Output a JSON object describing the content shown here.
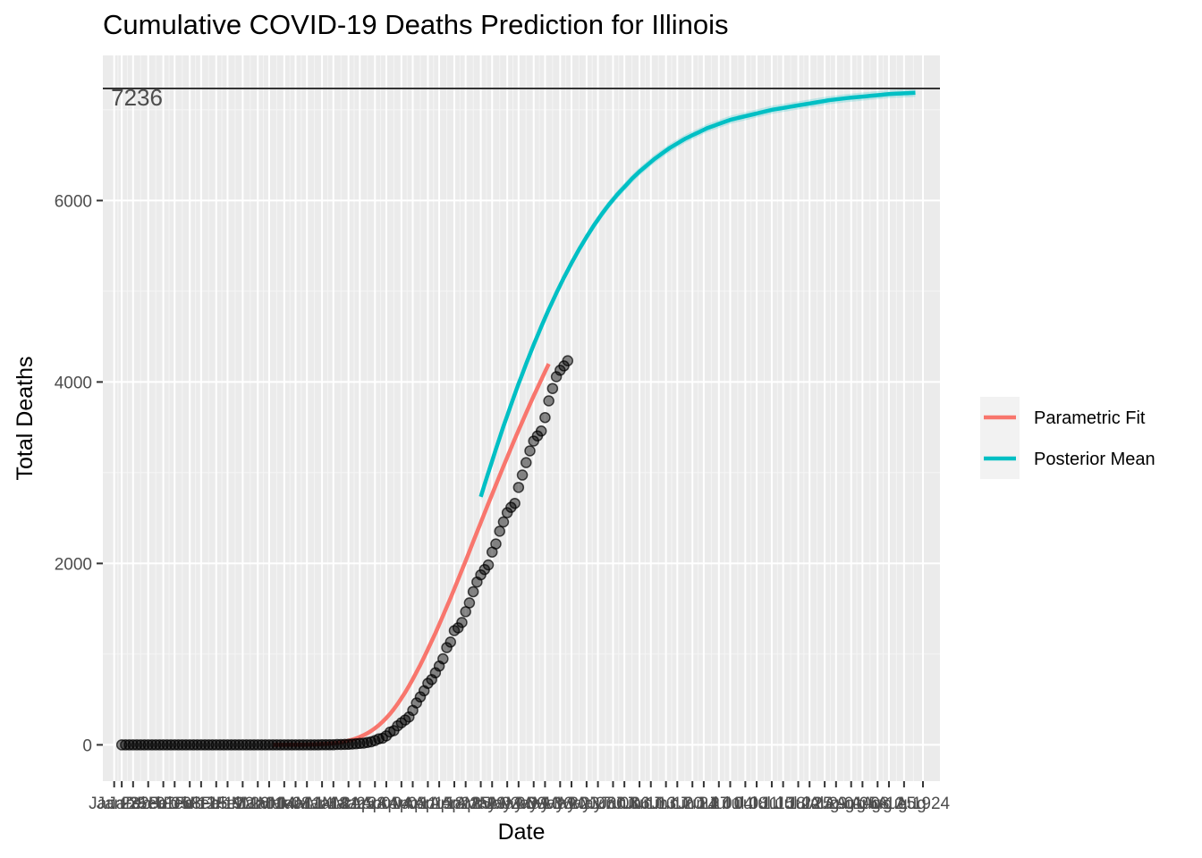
{
  "chart_data": {
    "type": "line",
    "title": "Cumulative COVID-19 Deaths Prediction for Illinois",
    "xlabel": "Date",
    "ylabel": "Total Deaths",
    "x_type": "date",
    "ylim": [
      -400,
      7600
    ],
    "y_ticks": [
      0,
      2000,
      4000,
      6000
    ],
    "y_tick_labels": [
      "0",
      "2000",
      "4000",
      "6000"
    ],
    "x_tick_labels": [
      "Jan 23",
      "Jan 25",
      "Jan 28",
      "Feb 01",
      "Feb 05",
      "Feb 08",
      "Feb 12",
      "Feb 15",
      "Feb 19",
      "Feb 22",
      "Feb 26",
      "Mar 01",
      "Mar 04",
      "Mar 08",
      "Mar 11",
      "Mar 14",
      "Mar 18",
      "Mar 21",
      "Mar 25",
      "Mar 28",
      "Apr 01",
      "Apr 04",
      "Apr 08",
      "Apr 11",
      "Apr 15",
      "Apr 18",
      "Apr 22",
      "Apr 25",
      "Apr 29",
      "May 02",
      "May 06",
      "May 09",
      "May 13",
      "May 16",
      "May 20",
      "May 23",
      "May 27",
      "May 30",
      "Jun 03",
      "Jun 06",
      "Jun 10",
      "Jun 13",
      "Jun 17",
      "Jun 20",
      "Jun 24",
      "Jun 27",
      "Jul 01",
      "Jul 04",
      "Jul 08",
      "Jul 11",
      "Jul 15",
      "Jul 18",
      "Jul 22",
      "Jul 25",
      "Jul 29",
      "Aug 01",
      "Aug 05",
      "Aug 08",
      "Aug 12",
      "Aug 15",
      "Aug 19",
      "Aug 24"
    ],
    "hline": 7236,
    "hline_label": "7236",
    "grid": true,
    "legend_position": "right",
    "background": "#ebebeb",
    "series": [
      {
        "name": "Parametric Fit",
        "color": "#f8766d",
        "start_date": "2020-03-05",
        "end_date": "2020-05-11",
        "values": [
          0,
          0,
          0,
          1,
          1,
          1,
          1,
          2,
          2,
          3,
          4,
          5,
          7,
          9,
          11,
          14,
          18,
          23,
          29,
          37,
          46,
          57,
          71,
          87,
          106,
          128,
          154,
          183,
          216,
          254,
          296,
          343,
          395,
          451,
          513,
          579,
          649,
          723,
          801,
          882,
          966,
          1053,
          1142,
          1233,
          1327,
          1423,
          1520,
          1619,
          1720,
          1822,
          1925,
          2029,
          2134,
          2239,
          2344,
          2450,
          2555,
          2659,
          2763,
          2866,
          2968,
          3070,
          3171,
          3272,
          3370,
          3467,
          3564,
          3659,
          3753,
          3845,
          3936,
          4025,
          4113,
          4200
        ]
      },
      {
        "name": "Posterior Mean",
        "color": "#00bfc4",
        "start_date": "2020-04-29",
        "end_date": "2020-08-22",
        "values": [
          2735,
          2870,
          3000,
          3130,
          3260,
          3385,
          3510,
          3630,
          3750,
          3865,
          3980,
          4090,
          4200,
          4305,
          4410,
          4510,
          4610,
          4705,
          4800,
          4890,
          4980,
          5065,
          5150,
          5230,
          5310,
          5385,
          5460,
          5530,
          5600,
          5665,
          5730,
          5790,
          5850,
          5905,
          5960,
          6010,
          6060,
          6105,
          6150,
          6195,
          6240,
          6280,
          6320,
          6355,
          6390,
          6425,
          6460,
          6490,
          6520,
          6550,
          6580,
          6605,
          6630,
          6655,
          6680,
          6700,
          6720,
          6740,
          6760,
          6780,
          6800,
          6815,
          6830,
          6845,
          6860,
          6875,
          6890,
          6900,
          6910,
          6920,
          6930,
          6940,
          6950,
          6960,
          6970,
          6980,
          6990,
          7000,
          7007,
          7014,
          7021,
          7028,
          7035,
          7042,
          7049,
          7056,
          7063,
          7070,
          7077,
          7084,
          7091,
          7098,
          7105,
          7110,
          7115,
          7120,
          7125,
          7130,
          7134,
          7138,
          7142,
          7146,
          7150,
          7154,
          7158,
          7162,
          7166,
          7170,
          7174,
          7176,
          7178,
          7180,
          7182,
          7184,
          7186,
          7188
        ]
      }
    ],
    "observed": {
      "start_date": "2020-01-25",
      "end_date": "2020-05-11",
      "values": [
        0,
        0,
        0,
        0,
        0,
        0,
        0,
        0,
        0,
        0,
        0,
        0,
        0,
        0,
        0,
        0,
        0,
        0,
        0,
        0,
        0,
        0,
        0,
        0,
        0,
        0,
        0,
        0,
        0,
        0,
        0,
        0,
        0,
        0,
        0,
        0,
        0,
        0,
        0,
        0,
        0,
        0,
        0,
        0,
        0,
        0,
        0,
        0,
        0,
        0,
        0,
        0,
        0,
        1,
        1,
        1,
        1,
        4,
        4,
        5,
        6,
        9,
        12,
        16,
        19,
        26,
        34,
        47,
        66,
        73,
        99,
        141,
        157,
        210,
        243,
        274,
        307,
        380,
        462,
        528,
        596,
        677,
        720,
        794,
        868,
        948,
        1072,
        1133,
        1259,
        1290,
        1349,
        1468,
        1565,
        1688,
        1795,
        1874,
        1933,
        1983,
        2125,
        2215,
        2355,
        2457,
        2559,
        2618,
        2662,
        2838,
        2974,
        3111,
        3241,
        3349,
        3406,
        3459,
        3608,
        3792,
        3928,
        4058,
        4129,
        4177,
        4234
      ]
    }
  }
}
